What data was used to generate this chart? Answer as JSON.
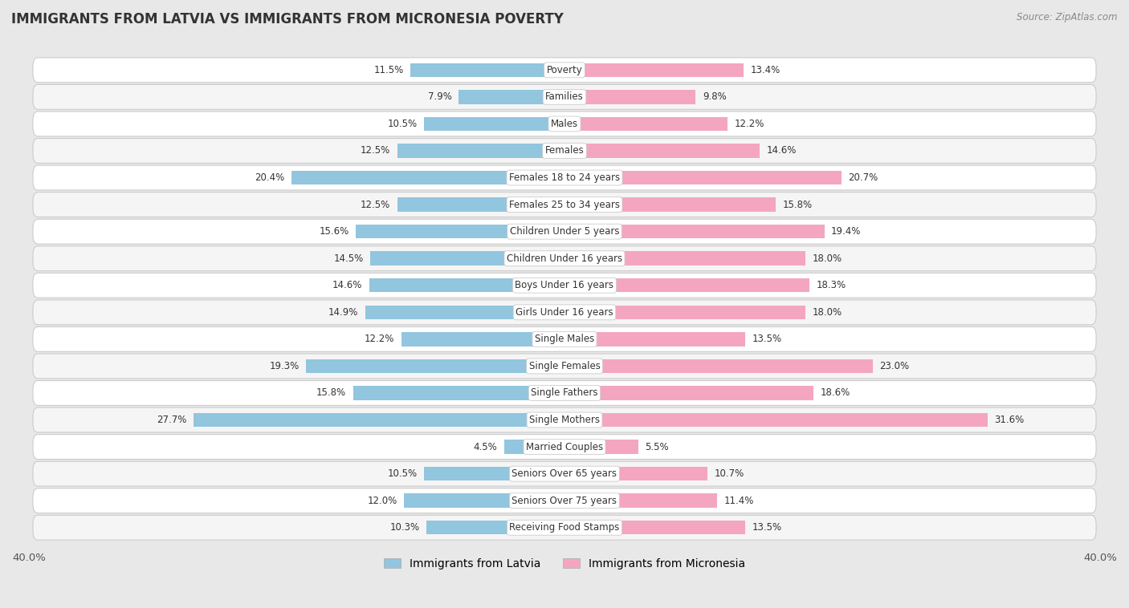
{
  "title": "IMMIGRANTS FROM LATVIA VS IMMIGRANTS FROM MICRONESIA POVERTY",
  "source": "Source: ZipAtlas.com",
  "categories": [
    "Poverty",
    "Families",
    "Males",
    "Females",
    "Females 18 to 24 years",
    "Females 25 to 34 years",
    "Children Under 5 years",
    "Children Under 16 years",
    "Boys Under 16 years",
    "Girls Under 16 years",
    "Single Males",
    "Single Females",
    "Single Fathers",
    "Single Mothers",
    "Married Couples",
    "Seniors Over 65 years",
    "Seniors Over 75 years",
    "Receiving Food Stamps"
  ],
  "latvia_values": [
    11.5,
    7.9,
    10.5,
    12.5,
    20.4,
    12.5,
    15.6,
    14.5,
    14.6,
    14.9,
    12.2,
    19.3,
    15.8,
    27.7,
    4.5,
    10.5,
    12.0,
    10.3
  ],
  "micronesia_values": [
    13.4,
    9.8,
    12.2,
    14.6,
    20.7,
    15.8,
    19.4,
    18.0,
    18.3,
    18.0,
    13.5,
    23.0,
    18.6,
    31.6,
    5.5,
    10.7,
    11.4,
    13.5
  ],
  "latvia_color": "#92c5de",
  "micronesia_color": "#f4a6c0",
  "page_background": "#e8e8e8",
  "row_color_odd": "#ffffff",
  "row_color_even": "#f5f5f5",
  "xlim": 40.0,
  "legend_latvia": "Immigrants from Latvia",
  "legend_micronesia": "Immigrants from Micronesia"
}
